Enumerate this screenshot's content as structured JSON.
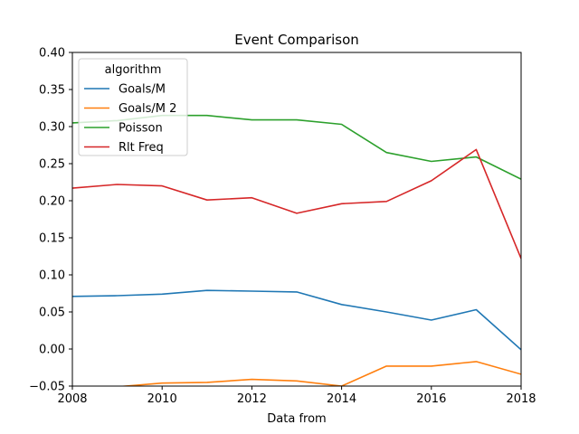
{
  "chart_data": {
    "type": "line",
    "title": "Event Comparison",
    "xlabel": "Data from",
    "ylabel": "",
    "xlim": [
      2008,
      2018
    ],
    "ylim": [
      -0.05,
      0.4
    ],
    "x_ticks": [
      2008,
      2010,
      2012,
      2014,
      2016,
      2018
    ],
    "x_tick_labels": [
      "2008",
      "2010",
      "2012",
      "2014",
      "2016",
      "2018"
    ],
    "y_ticks": [
      -0.05,
      0.0,
      0.05,
      0.1,
      0.15,
      0.2,
      0.25,
      0.3,
      0.35,
      0.4
    ],
    "y_tick_labels": [
      "−0.05",
      "0.00",
      "0.05",
      "0.10",
      "0.15",
      "0.20",
      "0.25",
      "0.30",
      "0.35",
      "0.40"
    ],
    "grid": false,
    "legend": {
      "title": "algorithm",
      "placement": "upper-left"
    },
    "x": [
      2008,
      2009,
      2010,
      2011,
      2012,
      2013,
      2014,
      2015,
      2016,
      2017,
      2018
    ],
    "series": [
      {
        "name": "Goals/M",
        "color": "#1f77b4",
        "values": [
          0.071,
          0.072,
          0.074,
          0.079,
          0.078,
          0.077,
          0.06,
          0.05,
          0.039,
          0.053,
          -0.001
        ]
      },
      {
        "name": "Goals/M 2",
        "color": "#ff7f0e",
        "values": [
          -0.054,
          -0.051,
          -0.046,
          -0.045,
          -0.041,
          -0.043,
          -0.05,
          -0.023,
          -0.023,
          -0.017,
          -0.034
        ]
      },
      {
        "name": "Poisson",
        "color": "#2ca02c",
        "values": [
          0.305,
          0.308,
          0.315,
          0.315,
          0.309,
          0.309,
          0.303,
          0.265,
          0.253,
          0.259,
          0.229
        ]
      },
      {
        "name": "Rlt Freq",
        "color": "#d62728",
        "values": [
          0.217,
          0.222,
          0.22,
          0.201,
          0.204,
          0.183,
          0.196,
          0.199,
          0.227,
          0.269,
          0.122
        ]
      }
    ]
  }
}
